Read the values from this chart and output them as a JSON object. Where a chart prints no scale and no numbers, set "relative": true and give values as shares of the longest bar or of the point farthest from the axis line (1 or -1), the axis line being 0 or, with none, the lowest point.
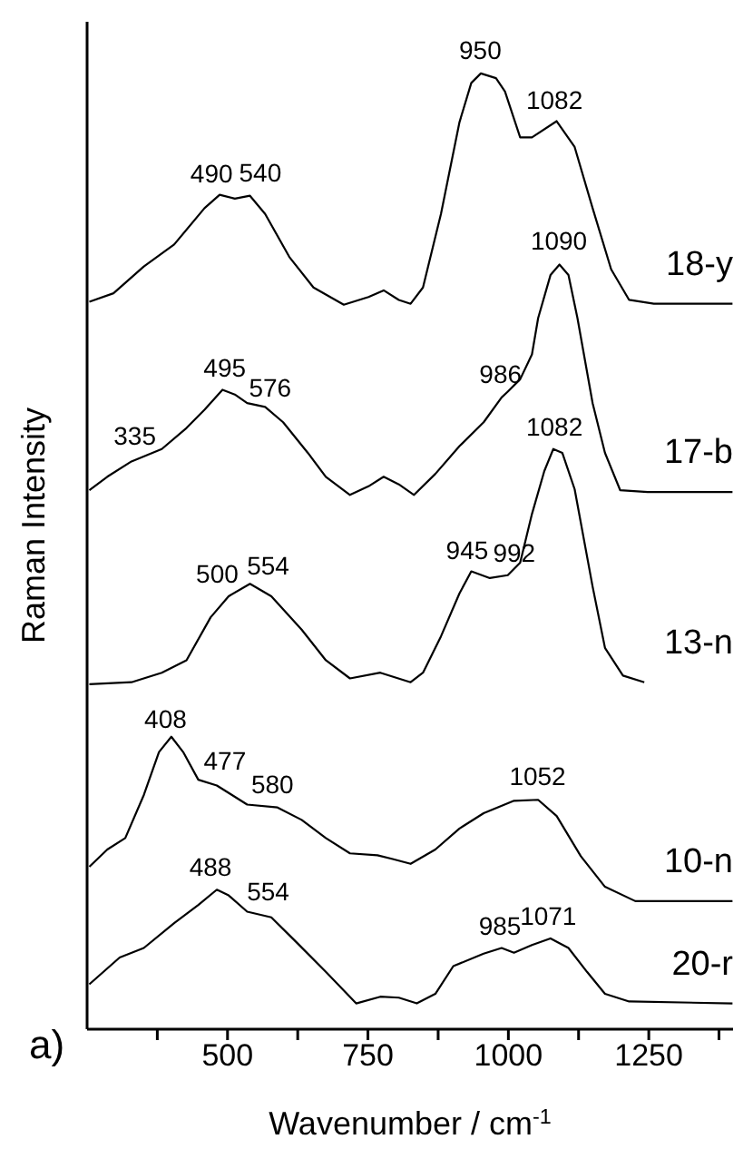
{
  "chart_data": {
    "type": "line",
    "relative": true,
    "xlabel": "Wavenumber  / cm$^{-1}$",
    "ylabel": "Raman Intensity",
    "xlim": [
      250,
      1400
    ],
    "xticks": [
      {
        "value": 375,
        "label": null
      },
      500,
      {
        "value": 625,
        "label": null
      },
      750,
      {
        "value": 875,
        "label": null
      },
      1000,
      {
        "value": 1125,
        "label": null
      },
      1250,
      {
        "value": 1375,
        "label": null
      }
    ],
    "marker": "none",
    "line_style": "solid",
    "series": [
      {
        "name": "18-y",
        "color": "#000000",
        "x": [
          254,
          297,
          351,
          405,
          459,
          486,
          513,
          540,
          567,
          610,
          653,
          707,
          751,
          778,
          805,
          826,
          848,
          880,
          913,
          934,
          951,
          978,
          994,
          1021,
          1042,
          1086,
          1118,
          1150,
          1183,
          1215,
          1259,
          1399
        ],
        "values": [
          0.761,
          0.77,
          0.798,
          0.821,
          0.859,
          0.873,
          0.869,
          0.872,
          0.853,
          0.808,
          0.776,
          0.758,
          0.766,
          0.773,
          0.763,
          0.759,
          0.776,
          0.853,
          0.949,
          0.99,
          1.0,
          0.995,
          0.981,
          0.933,
          0.933,
          0.95,
          0.923,
          0.859,
          0.795,
          0.763,
          0.759,
          0.759
        ]
      },
      {
        "name": "17-b",
        "color": "#000000",
        "x": [
          254,
          286,
          329,
          383,
          427,
          459,
          491,
          513,
          535,
          567,
          599,
          643,
          675,
          718,
          751,
          778,
          805,
          832,
          870,
          913,
          956,
          988,
          999,
          1021,
          1042,
          1053,
          1075,
          1091,
          1107,
          1123,
          1150,
          1172,
          1199,
          1248,
          1399
        ],
        "values": [
          0.564,
          0.578,
          0.594,
          0.607,
          0.629,
          0.648,
          0.669,
          0.664,
          0.655,
          0.651,
          0.635,
          0.603,
          0.578,
          0.559,
          0.568,
          0.578,
          0.57,
          0.559,
          0.581,
          0.61,
          0.635,
          0.661,
          0.667,
          0.68,
          0.706,
          0.744,
          0.789,
          0.8,
          0.789,
          0.744,
          0.655,
          0.603,
          0.564,
          0.562,
          0.562
        ]
      },
      {
        "name": "13-n",
        "color": "#000000",
        "x": [
          254,
          329,
          383,
          427,
          470,
          502,
          540,
          578,
          632,
          675,
          718,
          772,
          826,
          848,
          880,
          913,
          934,
          967,
          999,
          1021,
          1042,
          1064,
          1080,
          1096,
          1118,
          1150,
          1172,
          1204,
          1242
        ],
        "values": [
          0.361,
          0.363,
          0.373,
          0.386,
          0.431,
          0.453,
          0.466,
          0.453,
          0.418,
          0.386,
          0.367,
          0.373,
          0.363,
          0.373,
          0.411,
          0.456,
          0.479,
          0.472,
          0.475,
          0.488,
          0.539,
          0.584,
          0.607,
          0.603,
          0.565,
          0.463,
          0.399,
          0.37,
          0.363
        ]
      },
      {
        "name": "10-n",
        "color": "#000000",
        "x": [
          254,
          286,
          318,
          351,
          378,
          400,
          421,
          448,
          481,
          535,
          589,
          632,
          675,
          718,
          767,
          794,
          826,
          870,
          913,
          956,
          1010,
          1053,
          1086,
          1129,
          1172,
          1226,
          1399
        ],
        "values": [
          0.17,
          0.188,
          0.2,
          0.245,
          0.29,
          0.306,
          0.29,
          0.261,
          0.255,
          0.235,
          0.232,
          0.219,
          0.2,
          0.184,
          0.182,
          0.178,
          0.173,
          0.188,
          0.21,
          0.226,
          0.239,
          0.24,
          0.223,
          0.181,
          0.149,
          0.134,
          0.134
        ]
      },
      {
        "name": "20-r",
        "color": "#000000",
        "x": [
          254,
          308,
          351,
          405,
          448,
          481,
          502,
          535,
          578,
          621,
          675,
          729,
          772,
          805,
          837,
          870,
          902,
          956,
          988,
          1010,
          1042,
          1075,
          1107,
          1140,
          1172,
          1215,
          1399
        ],
        "values": [
          0.047,
          0.075,
          0.085,
          0.111,
          0.13,
          0.146,
          0.14,
          0.123,
          0.117,
          0.092,
          0.06,
          0.027,
          0.034,
          0.033,
          0.027,
          0.037,
          0.066,
          0.079,
          0.085,
          0.08,
          0.088,
          0.095,
          0.085,
          0.06,
          0.037,
          0.029,
          0.027
        ]
      }
    ],
    "annotations": [
      {
        "text": "490",
        "x": 490,
        "y": 0.871
      },
      {
        "text": "540",
        "x": 540,
        "y": 0.872
      },
      {
        "text": "950",
        "x": 950,
        "y": 1.0
      },
      {
        "text": "1082",
        "x": 1082,
        "y": 0.948
      },
      {
        "text": "1090",
        "x": 1090,
        "y": 0.8
      },
      {
        "text": "986",
        "x": 986,
        "y": 0.661
      },
      {
        "text": "495",
        "x": 495,
        "y": 0.668
      },
      {
        "text": "576",
        "x": 576,
        "y": 0.647
      },
      {
        "text": "335",
        "x": 335,
        "y": 0.596
      },
      {
        "text": "1082",
        "x": 1082,
        "y": 0.606
      },
      {
        "text": "992",
        "x": 992,
        "y": 0.474
      },
      {
        "text": "945",
        "x": 945,
        "y": 0.477
      },
      {
        "text": "554",
        "x": 554,
        "y": 0.461
      },
      {
        "text": "500",
        "x": 500,
        "y": 0.452
      },
      {
        "text": "408",
        "x": 408,
        "y": 0.3
      },
      {
        "text": "477",
        "x": 477,
        "y": 0.256
      },
      {
        "text": "580",
        "x": 580,
        "y": 0.232
      },
      {
        "text": "1052",
        "x": 1052,
        "y": 0.24
      },
      {
        "text": "488",
        "x": 488,
        "y": 0.145
      },
      {
        "text": "554",
        "x": 554,
        "y": 0.12
      },
      {
        "text": "985",
        "x": 985,
        "y": 0.084
      },
      {
        "text": "1071",
        "x": 1071,
        "y": 0.094
      },
      "a)"
    ]
  }
}
